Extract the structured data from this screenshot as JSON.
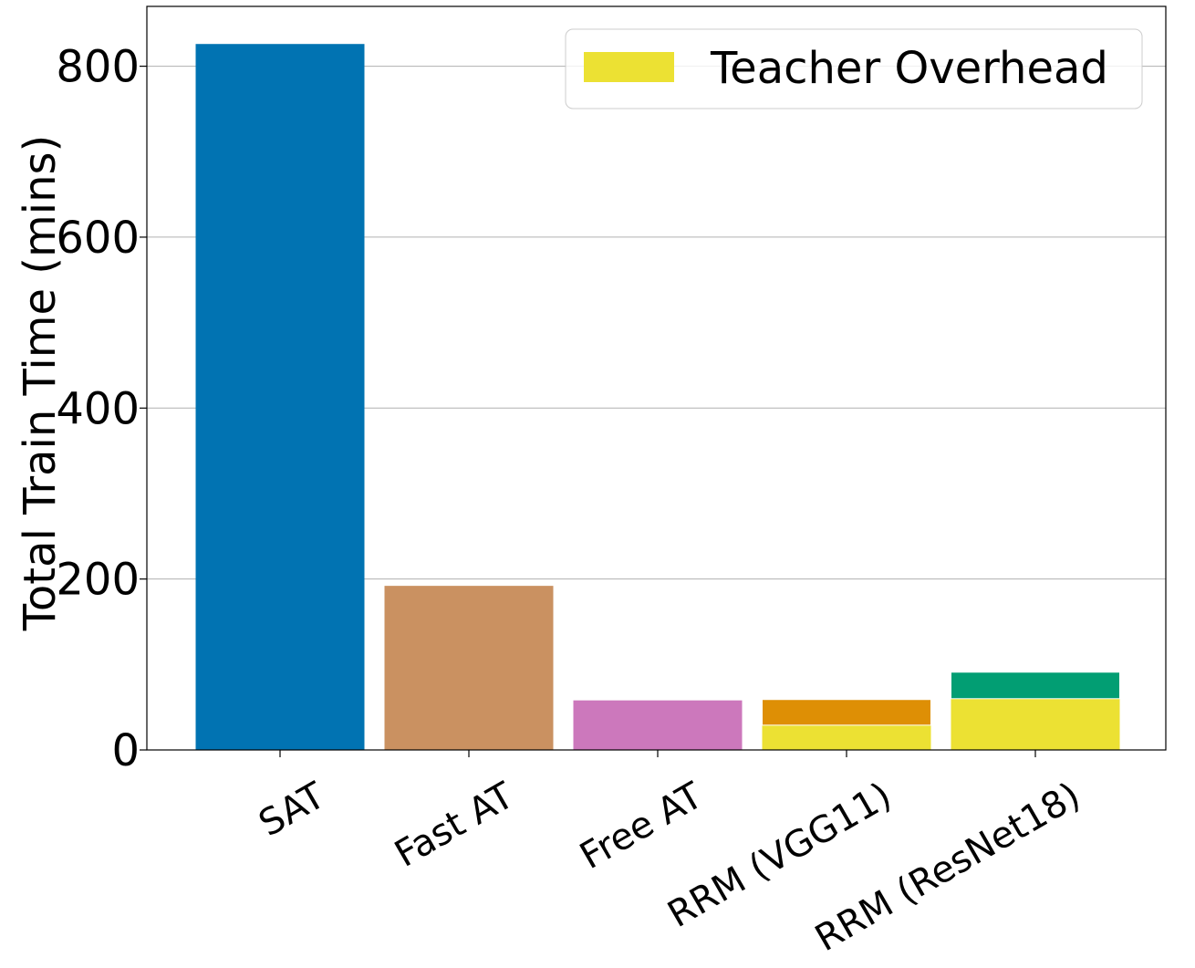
{
  "chart_data": {
    "type": "bar",
    "stacked": true,
    "title": "",
    "xlabel": "",
    "ylabel": "Total Train Time (mins)",
    "ylim": [
      0,
      870
    ],
    "yticks": [
      0,
      200,
      400,
      600,
      800
    ],
    "grid": "horizontal",
    "legend_placement": "top-right",
    "categories": [
      "SAT",
      "Fast AT",
      "Free AT",
      "RRM (VGG11)",
      "RRM (ResNet18)"
    ],
    "bars": [
      {
        "category": "SAT",
        "segments": [
          {
            "value": 826,
            "color": "#0173b2"
          }
        ]
      },
      {
        "category": "Fast AT",
        "segments": [
          {
            "value": 192,
            "color": "#ca9161"
          }
        ]
      },
      {
        "category": "Free AT",
        "segments": [
          {
            "value": 58,
            "color": "#cc78bc"
          }
        ]
      },
      {
        "category": "RRM (VGG11)",
        "segments": [
          {
            "value": 29,
            "color": "#ece133",
            "legend": true
          },
          {
            "value": 30,
            "color": "#de8f05"
          }
        ]
      },
      {
        "category": "RRM (ResNet18)",
        "segments": [
          {
            "value": 60,
            "color": "#ece133",
            "legend": true
          },
          {
            "value": 31,
            "color": "#029e73"
          }
        ]
      }
    ],
    "legend": [
      {
        "label": "Teacher Overhead",
        "color": "#ece133"
      }
    ]
  }
}
